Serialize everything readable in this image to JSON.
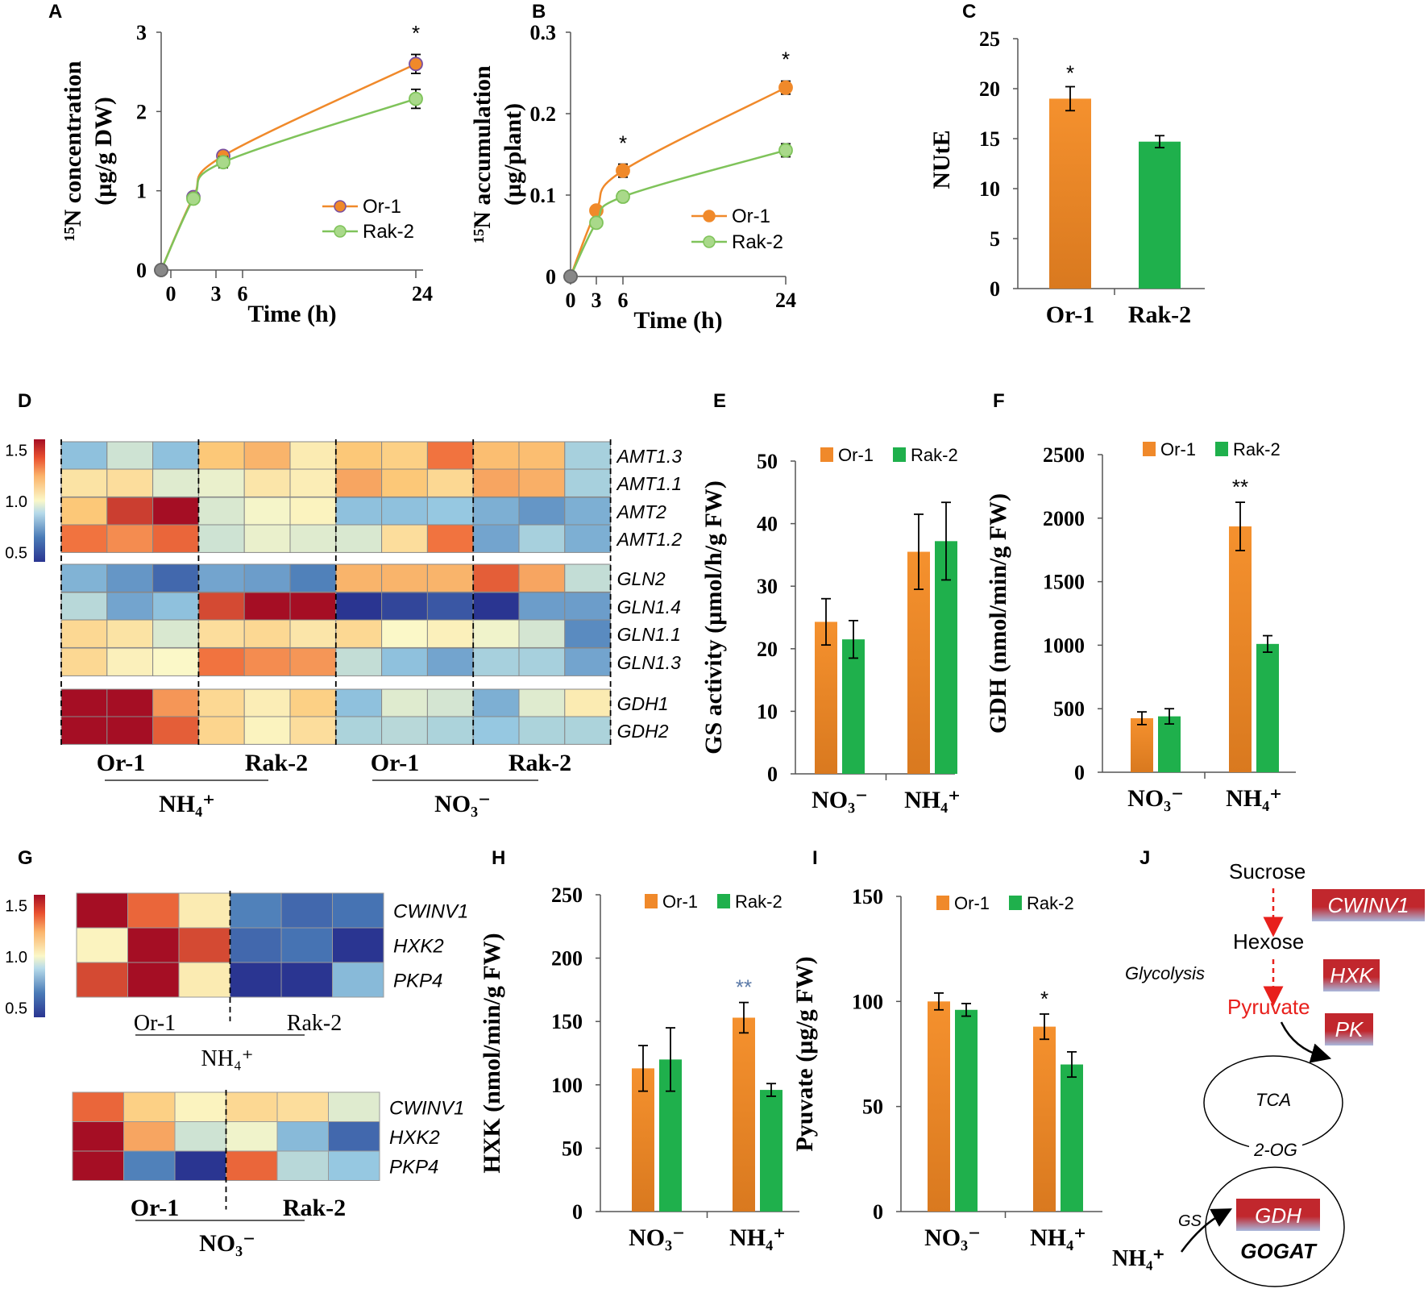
{
  "colors": {
    "or1": "#f0892a",
    "rak2": "#1fb04c",
    "or1_line": "#f0892a",
    "rak2_line": "#7fc35a",
    "rak2_marker": "#a9d98a",
    "star_blue": "#5b7aa8",
    "pyruvate_red": "#e8201c",
    "enzyme_red": "#c1272d"
  },
  "panel_letters": [
    "A",
    "B",
    "C",
    "D",
    "E",
    "F",
    "G",
    "H",
    "I",
    "J"
  ],
  "chart_data": [
    {
      "panel": "A",
      "type": "line",
      "ylabel_lines": [
        "¹⁵N concentration",
        "(µg/g DW)"
      ],
      "xlabel": "Time (h)",
      "xticks": [
        "0",
        "3",
        "6",
        "24"
      ],
      "yticks": [
        "0",
        "1",
        "2",
        "3"
      ],
      "ylim": [
        0,
        3
      ],
      "series": [
        {
          "name": "Or-1",
          "x": [
            0,
            1.5,
            3.5,
            24
          ],
          "y": [
            0,
            0.92,
            1.44,
            2.6
          ],
          "err": [
            0,
            0.05,
            0.06,
            0.12
          ]
        },
        {
          "name": "Rak-2",
          "x": [
            0,
            1.5,
            3.5,
            24
          ],
          "y": [
            0,
            0.9,
            1.36,
            2.16
          ],
          "err": [
            0,
            0.05,
            0.07,
            0.12
          ]
        }
      ],
      "annotations": [
        {
          "x": 24,
          "y": 2.9,
          "text": "*"
        }
      ]
    },
    {
      "panel": "B",
      "type": "line",
      "ylabel_lines": [
        "¹⁵N accumulation",
        "(µg/plant)"
      ],
      "xlabel": "Time (h)",
      "xticks": [
        "0",
        "3",
        "6",
        "24"
      ],
      "yticks": [
        "0",
        "0.1",
        "0.2",
        "0.3"
      ],
      "ylim": [
        0,
        0.3
      ],
      "series": [
        {
          "name": "Or-1",
          "x": [
            0,
            3,
            6,
            24
          ],
          "y": [
            0,
            0.081,
            0.13,
            0.232
          ],
          "err": [
            0,
            0.004,
            0.008,
            0.008
          ]
        },
        {
          "name": "Rak-2",
          "x": [
            0,
            3,
            6,
            24
          ],
          "y": [
            0,
            0.066,
            0.098,
            0.155
          ],
          "err": [
            0,
            0.004,
            0.006,
            0.008
          ]
        }
      ],
      "annotations": [
        {
          "x": 6,
          "y": 0.155,
          "text": "*"
        },
        {
          "x": 24,
          "y": 0.258,
          "text": "*"
        }
      ]
    },
    {
      "panel": "C",
      "type": "bar",
      "ylabel": "NUtE",
      "categories": [
        "Or-1",
        "Rak-2"
      ],
      "values": [
        19,
        14.7
      ],
      "err": [
        1.2,
        0.6
      ],
      "yticks": [
        "0",
        "5",
        "10",
        "15",
        "20",
        "25"
      ],
      "ylim": [
        0,
        25
      ],
      "annotations": [
        {
          "text": "*",
          "category": "Or-1"
        }
      ]
    },
    {
      "panel": "E",
      "type": "bar",
      "ylabel": "GS activity (µmol/h/g FW)",
      "categories": [
        "NO₃⁻",
        "NH₄⁺"
      ],
      "series": [
        {
          "name": "Or-1",
          "values": [
            24.3,
            35.5
          ],
          "err": [
            3.7,
            6.0
          ]
        },
        {
          "name": "Rak-2",
          "values": [
            21.5,
            37.2
          ],
          "err": [
            3.0,
            6.2
          ]
        }
      ],
      "yticks": [
        "0",
        "10",
        "20",
        "30",
        "40",
        "50"
      ],
      "ylim": [
        0,
        50
      ]
    },
    {
      "panel": "F",
      "type": "bar",
      "ylabel": "GDH (nmol/min/g FW)",
      "categories": [
        "NO₃⁻",
        "NH₄⁺"
      ],
      "series": [
        {
          "name": "Or-1",
          "values": [
            425,
            1935
          ],
          "err": [
            50,
            190
          ]
        },
        {
          "name": "Rak-2",
          "values": [
            440,
            1010
          ],
          "err": [
            60,
            65
          ]
        }
      ],
      "yticks": [
        "0",
        "500",
        "1000",
        "1500",
        "2000",
        "2500"
      ],
      "ylim": [
        0,
        2500
      ],
      "annotations": [
        {
          "text": "**",
          "category_index": 1
        }
      ]
    },
    {
      "panel": "H",
      "type": "bar",
      "ylabel": "HXK (nmol/min/g FW)",
      "categories": [
        "NO₃⁻",
        "NH₄⁺"
      ],
      "series": [
        {
          "name": "Or-1",
          "values": [
            113,
            153
          ],
          "err": [
            18,
            12
          ]
        },
        {
          "name": "Rak-2",
          "values": [
            120,
            96
          ],
          "err": [
            25,
            5
          ]
        }
      ],
      "yticks": [
        "0",
        "50",
        "100",
        "150",
        "200",
        "250"
      ],
      "ylim": [
        0,
        250
      ],
      "annotations": [
        {
          "text": "**",
          "category_index": 1
        }
      ]
    },
    {
      "panel": "I",
      "type": "bar",
      "ylabel": "Pyuvate (µg/g FW)",
      "categories": [
        "NO₃⁻",
        "NH₄⁺"
      ],
      "series": [
        {
          "name": "Or-1",
          "values": [
            100,
            88
          ],
          "err": [
            4,
            6
          ]
        },
        {
          "name": "Rak-2",
          "values": [
            96,
            70
          ],
          "err": [
            3,
            6
          ]
        }
      ],
      "yticks": [
        "0",
        "50",
        "100",
        "150"
      ],
      "ylim": [
        0,
        150
      ],
      "annotations": [
        {
          "text": "*",
          "category_index": 1
        }
      ]
    },
    {
      "panel": "D",
      "type": "heatmap",
      "scale_ticks": [
        "1.5",
        "1.0",
        "0.5"
      ],
      "scale_range": [
        0.4,
        1.6
      ],
      "genes": [
        "AMT1.3",
        "AMT1.1",
        "AMT2",
        "AMT1.2",
        "GLN2",
        "GLN1.4",
        "GLN1.1",
        "GLN1.3",
        "GDH1",
        "GDH2"
      ],
      "group_breaks_after": [
        3,
        7
      ],
      "column_groups": [
        "Or-1",
        "Rak-2",
        "Or-1",
        "Rak-2"
      ],
      "treatments": [
        "NH₄⁺",
        "NO₃⁻"
      ],
      "values": [
        [
          0.8,
          0.92,
          0.8,
          1.18,
          1.22,
          1.05,
          1.18,
          1.15,
          1.35,
          1.2,
          1.2,
          0.85
        ],
        [
          1.08,
          1.1,
          0.95,
          0.97,
          1.07,
          1.04,
          1.25,
          1.18,
          1.12,
          1.25,
          1.23,
          0.85
        ],
        [
          1.18,
          1.48,
          1.68,
          0.94,
          0.99,
          1.02,
          0.8,
          0.8,
          0.82,
          0.75,
          0.68,
          0.75
        ],
        [
          1.35,
          1.3,
          1.38,
          0.92,
          0.97,
          0.95,
          0.94,
          1.1,
          1.35,
          0.72,
          0.85,
          0.75
        ],
        [
          0.76,
          0.68,
          0.55,
          0.72,
          0.7,
          0.62,
          1.22,
          1.22,
          1.22,
          1.4,
          1.25,
          0.9
        ],
        [
          0.88,
          0.72,
          0.8,
          1.45,
          1.7,
          1.6,
          0.3,
          0.45,
          0.5,
          0.4,
          0.7,
          0.7
        ],
        [
          1.12,
          1.08,
          0.94,
          1.1,
          1.12,
          1.07,
          1.12,
          1.0,
          1.03,
          0.98,
          0.93,
          0.65
        ],
        [
          1.12,
          1.03,
          1.0,
          1.35,
          1.3,
          1.28,
          0.9,
          0.8,
          0.72,
          0.85,
          0.85,
          0.72
        ],
        [
          1.7,
          1.7,
          1.28,
          1.12,
          1.04,
          1.15,
          0.8,
          0.95,
          0.93,
          0.75,
          0.95,
          1.05
        ],
        [
          1.7,
          1.7,
          1.4,
          1.13,
          1.02,
          1.1,
          0.86,
          0.88,
          0.86,
          0.82,
          0.86,
          0.86
        ]
      ]
    },
    {
      "panel": "G",
      "type": "heatmap",
      "scale_ticks": [
        "1.5",
        "1.0",
        "0.5"
      ],
      "scale_range": [
        0.4,
        1.6
      ],
      "sub": [
        {
          "treatment": "NH₄⁺",
          "genes": [
            "CWINV1",
            "HXK2",
            "PKP4"
          ],
          "column_groups": [
            "Or-1",
            "Rak-2"
          ],
          "values": [
            [
              1.68,
              1.38,
              1.05,
              0.62,
              0.55,
              0.58
            ],
            [
              1.02,
              1.7,
              1.45,
              0.55,
              0.58,
              0.35
            ],
            [
              1.45,
              1.7,
              1.05,
              0.38,
              0.4,
              0.78
            ]
          ]
        },
        {
          "treatment": "NO₃⁻",
          "genes": [
            "CWINV1",
            "HXK2",
            "PKP4"
          ],
          "column_groups": [
            "Or-1",
            "Rak-2"
          ],
          "values": [
            [
              1.38,
              1.15,
              1.02,
              1.12,
              1.1,
              0.95
            ],
            [
              1.7,
              1.25,
              0.92,
              0.98,
              0.78,
              0.55
            ],
            [
              1.7,
              0.62,
              0.35,
              1.38,
              0.88,
              0.82
            ]
          ]
        }
      ]
    }
  ],
  "legend": {
    "or1": "Or-1",
    "rak2": "Rak-2"
  },
  "pathway": {
    "sucrose": "Sucrose",
    "hexose": "Hexose",
    "glycolysis": "Glycolysis",
    "pyruvate": "Pyruvate",
    "tca": "TCA",
    "two_og": "2-OG",
    "gs": "GS",
    "nh4": "NH₄⁺",
    "gogat": "GOGAT",
    "enzymes": [
      "CWINV1",
      "HXK",
      "PK",
      "GDH"
    ]
  }
}
